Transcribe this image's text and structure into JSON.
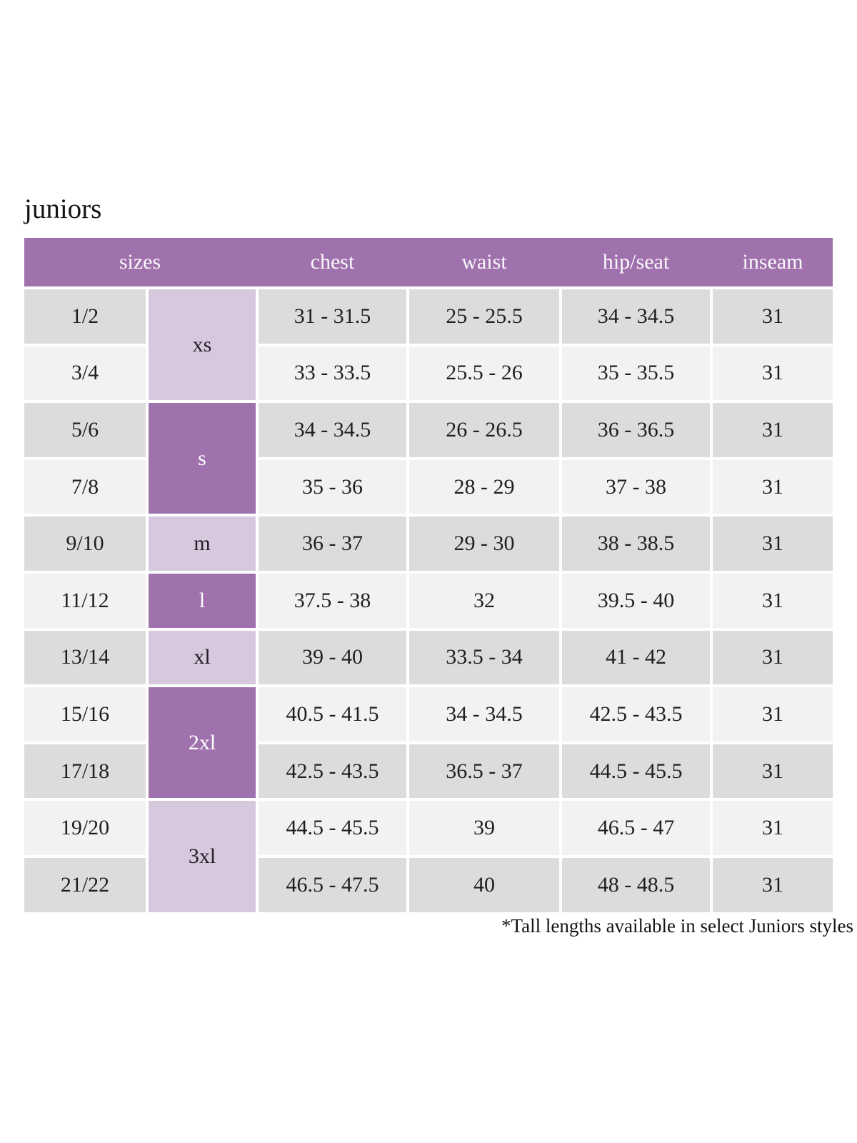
{
  "page": {
    "title": "juniors",
    "footnote": "*Tall lengths available in select Juniors styles"
  },
  "colors": {
    "header_bg": "#a072ad",
    "dark_purple": "#a072ad",
    "light_purple": "#d8c8de",
    "row_gray": "#dcdcdc",
    "row_light": "#f2f2f2",
    "header_text": "#faf7fb",
    "body_text": "#1f1f1f"
  },
  "table": {
    "headers": [
      "sizes",
      "chest",
      "waist",
      "hip/seat",
      "inseam"
    ],
    "size_groups": [
      {
        "label": "xs",
        "shade": "light",
        "row_span": 2
      },
      {
        "label": "s",
        "shade": "dark",
        "row_span": 2
      },
      {
        "label": "m",
        "shade": "light",
        "row_span": 1
      },
      {
        "label": "l",
        "shade": "dark",
        "row_span": 1
      },
      {
        "label": "xl",
        "shade": "light",
        "row_span": 1
      },
      {
        "label": "2xl",
        "shade": "dark",
        "row_span": 2
      },
      {
        "label": "3xl",
        "shade": "light",
        "row_span": 2
      }
    ],
    "rows": [
      {
        "size": "1/2",
        "chest": "31 - 31.5",
        "waist": "25 - 25.5",
        "hip_seat": "34 - 34.5",
        "inseam": "31"
      },
      {
        "size": "3/4",
        "chest": "33 - 33.5",
        "waist": "25.5 - 26",
        "hip_seat": "35 - 35.5",
        "inseam": "31"
      },
      {
        "size": "5/6",
        "chest": "34 - 34.5",
        "waist": "26 - 26.5",
        "hip_seat": "36 - 36.5",
        "inseam": "31"
      },
      {
        "size": "7/8",
        "chest": "35 - 36",
        "waist": "28 - 29",
        "hip_seat": "37 - 38",
        "inseam": "31"
      },
      {
        "size": "9/10",
        "chest": "36 - 37",
        "waist": "29 - 30",
        "hip_seat": "38 - 38.5",
        "inseam": "31"
      },
      {
        "size": "11/12",
        "chest": "37.5 - 38",
        "waist": "32",
        "hip_seat": "39.5 - 40",
        "inseam": "31"
      },
      {
        "size": "13/14",
        "chest": "39 - 40",
        "waist": "33.5 - 34",
        "hip_seat": "41 - 42",
        "inseam": "31"
      },
      {
        "size": "15/16",
        "chest": "40.5 - 41.5",
        "waist": "34 - 34.5",
        "hip_seat": "42.5 - 43.5",
        "inseam": "31"
      },
      {
        "size": "17/18",
        "chest": "42.5 - 43.5",
        "waist": "36.5 - 37",
        "hip_seat": "44.5 - 45.5",
        "inseam": "31"
      },
      {
        "size": "19/20",
        "chest": "44.5 - 45.5",
        "waist": "39",
        "hip_seat": "46.5 - 47",
        "inseam": "31"
      },
      {
        "size": "21/22",
        "chest": "46.5 - 47.5",
        "waist": "40",
        "hip_seat": "48 - 48.5",
        "inseam": "31"
      }
    ]
  }
}
